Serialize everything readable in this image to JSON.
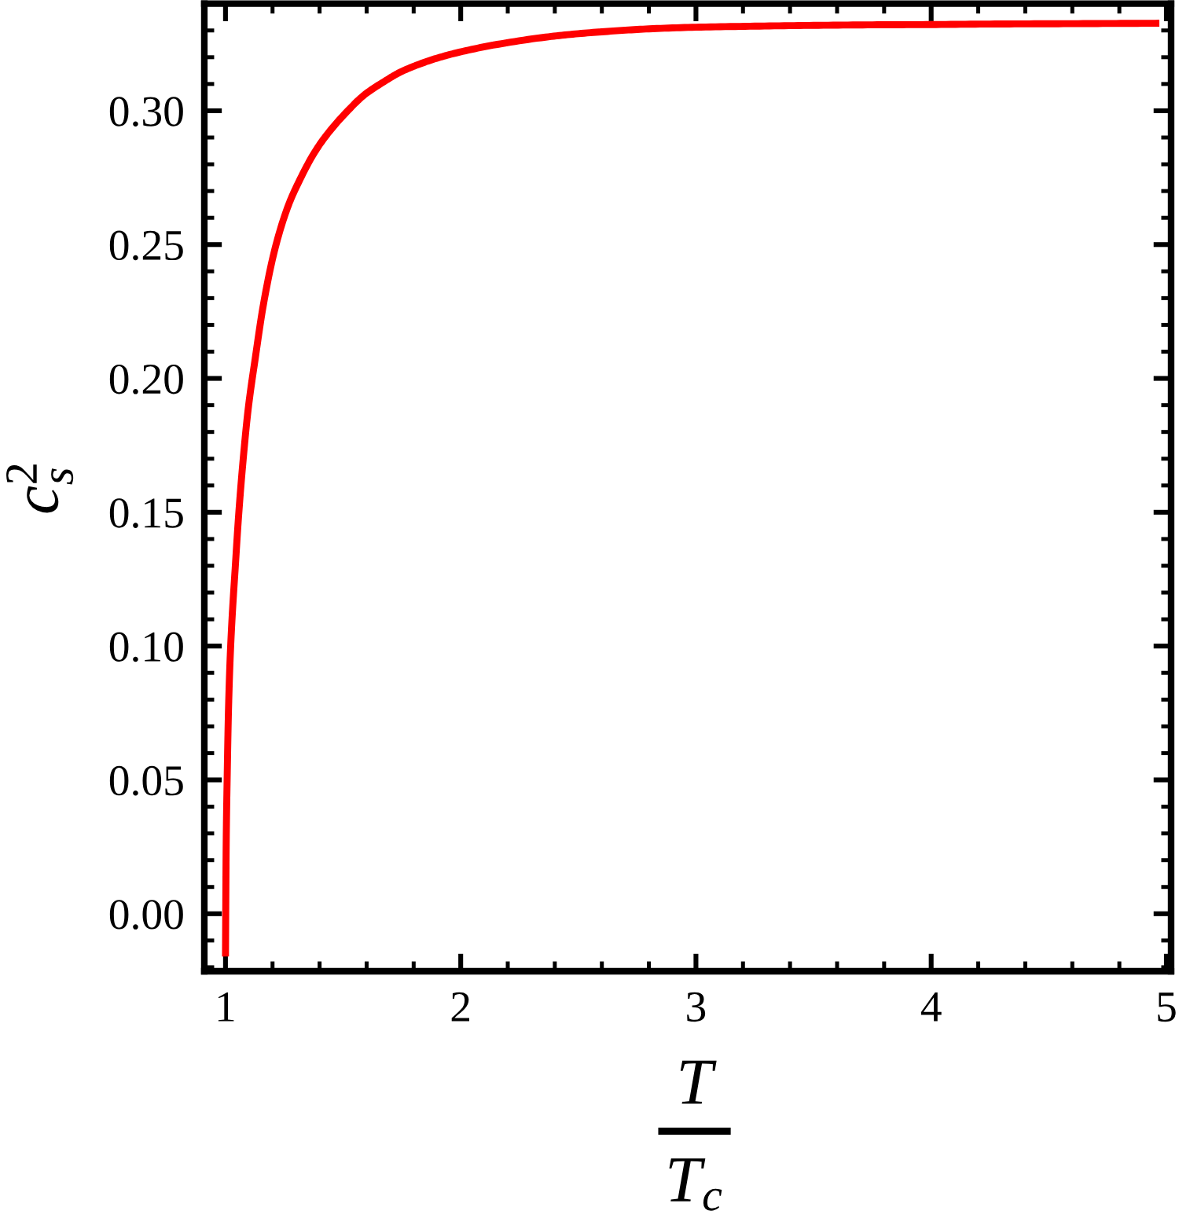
{
  "chart_data": {
    "type": "line",
    "xlabel": "T\nT$_{c}$",
    "ylabel": "c$^{2}$$_{s}$",
    "x": [
      1.0,
      1.001,
      1.003,
      1.007,
      1.013,
      1.022,
      1.043,
      1.056,
      1.074,
      1.096,
      1.127,
      1.161,
      1.212,
      1.268,
      1.312,
      1.379,
      1.435,
      1.52,
      1.59,
      1.68,
      1.74,
      1.803,
      1.89,
      1.981,
      2.137,
      2.361,
      2.5,
      2.65,
      2.8,
      3.0,
      3.25,
      3.5,
      3.75,
      4.0,
      4.25,
      4.5,
      4.75,
      4.97
    ],
    "series": [
      {
        "color": "#ff0000",
        "values": [
          -0.016,
          0.0,
          0.026,
          0.05,
          0.077,
          0.1,
          0.1315,
          0.149,
          0.1686,
          0.1882,
          0.2078,
          0.2275,
          0.249,
          0.2648,
          0.2735,
          0.2845,
          0.2915,
          0.3,
          0.3059,
          0.3112,
          0.3143,
          0.3167,
          0.3194,
          0.3216,
          0.3245,
          0.3275,
          0.3288,
          0.3298,
          0.3306,
          0.3312,
          0.3316,
          0.3319,
          0.3321,
          0.3322,
          0.3324,
          0.3325,
          0.3326,
          0.3327
        ]
      }
    ],
    "xlim": [
      0.91,
      5.02
    ],
    "ylim": [
      -0.0215,
      0.34
    ],
    "xticks": [
      1,
      2,
      3,
      4,
      5
    ],
    "yticks": [
      {
        "value": 0,
        "label": "0.00"
      },
      {
        "value": 0.05,
        "label": "0.05"
      },
      {
        "value": 0.1,
        "label": "0.10"
      },
      {
        "value": 0.15,
        "label": "0.15"
      },
      {
        "value": 0.2,
        "label": "0.20"
      },
      {
        "value": 0.25,
        "label": "0.25"
      },
      {
        "value": 0.3,
        "label": "0.30"
      }
    ],
    "grid": false,
    "marker": "none",
    "line_style": "solid"
  }
}
